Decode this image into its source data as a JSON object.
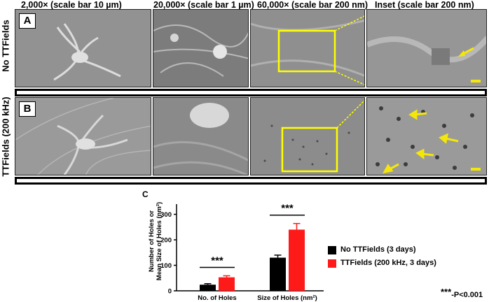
{
  "columns": [
    "2,000× (scale bar 10 µm)",
    "20,000× (scale bar 1 µm)",
    "60,000× (scale bar 200 nm)",
    "Inset (scale bar 200 nm)"
  ],
  "rows": [
    {
      "letter": "A",
      "label": "No TTFields"
    },
    {
      "letter": "B",
      "label": "TTFields (200 kHz)"
    }
  ],
  "panel_c_letter": "C",
  "colors": {
    "control": "#000000",
    "treated": "#ff1a1a",
    "box": "#ffff00",
    "arrow": "#f5e60a"
  },
  "chart_data": {
    "type": "bar",
    "categories": [
      "No. of Holes",
      "Size of Holes (nm²)"
    ],
    "series": [
      {
        "name": "No TTFields (3 days)",
        "values": [
          24,
          130
        ],
        "errors": [
          4,
          10
        ],
        "color": "#000000"
      },
      {
        "name": "TTFields (200 kHz, 3 days)",
        "values": [
          53,
          240
        ],
        "errors": [
          6,
          24
        ],
        "color": "#ff1a1a"
      }
    ],
    "ylabel_line1": "Number of Holes or",
    "ylabel_line2": "Mean Size of Holes (nm²)",
    "yticks": [
      0,
      100,
      200,
      300
    ],
    "ylim": [
      0,
      340
    ],
    "significance": [
      "***",
      "***"
    ],
    "footnote_stars": "***",
    "footnote": "-P<0.001",
    "legend_position": "right"
  }
}
